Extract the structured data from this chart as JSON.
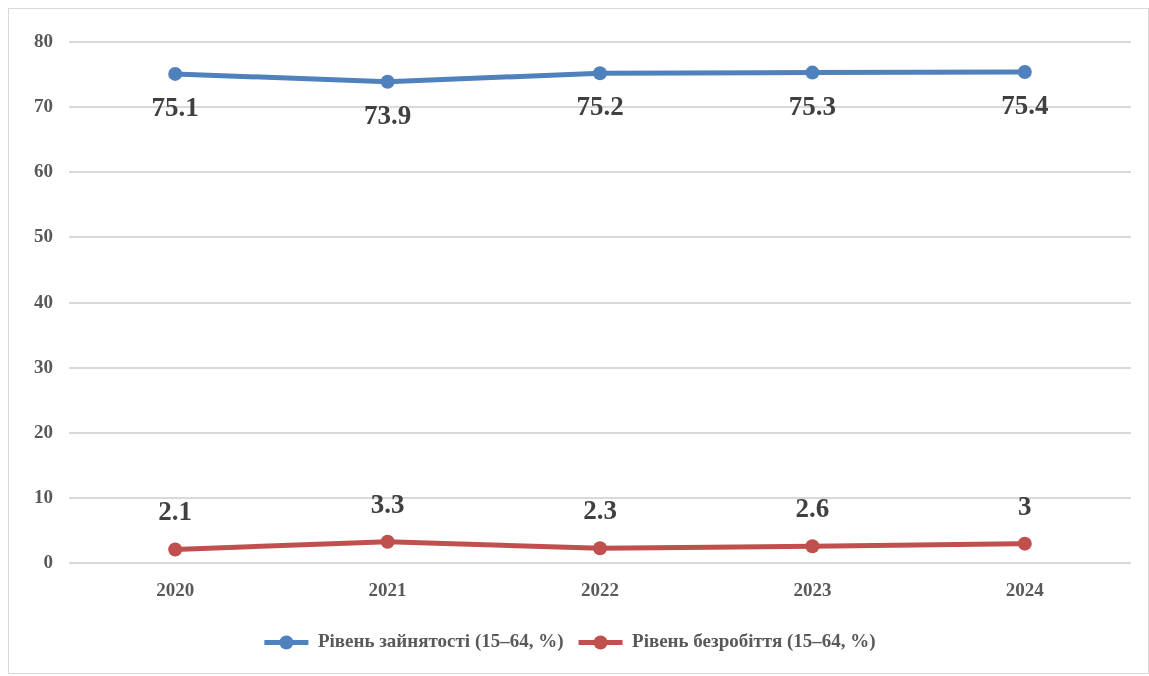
{
  "chart_data": {
    "type": "line",
    "categories": [
      "2020",
      "2021",
      "2022",
      "2023",
      "2024"
    ],
    "series": [
      {
        "name": "Рівень зайнятості (15–64, %)",
        "color": "#4f81bd",
        "values": [
          75.1,
          73.9,
          75.2,
          75.3,
          75.4
        ]
      },
      {
        "name": "Рівень безробіття (15–64, %)",
        "color": "#c0504d",
        "values": [
          2.1,
          3.3,
          2.3,
          2.6,
          3
        ]
      }
    ],
    "ylim": [
      0,
      80
    ],
    "yticks": [
      0,
      10,
      20,
      30,
      40,
      50,
      60,
      70,
      80
    ],
    "grid": "y",
    "legend": "bottom",
    "marker": "circle",
    "data_labels": true
  }
}
